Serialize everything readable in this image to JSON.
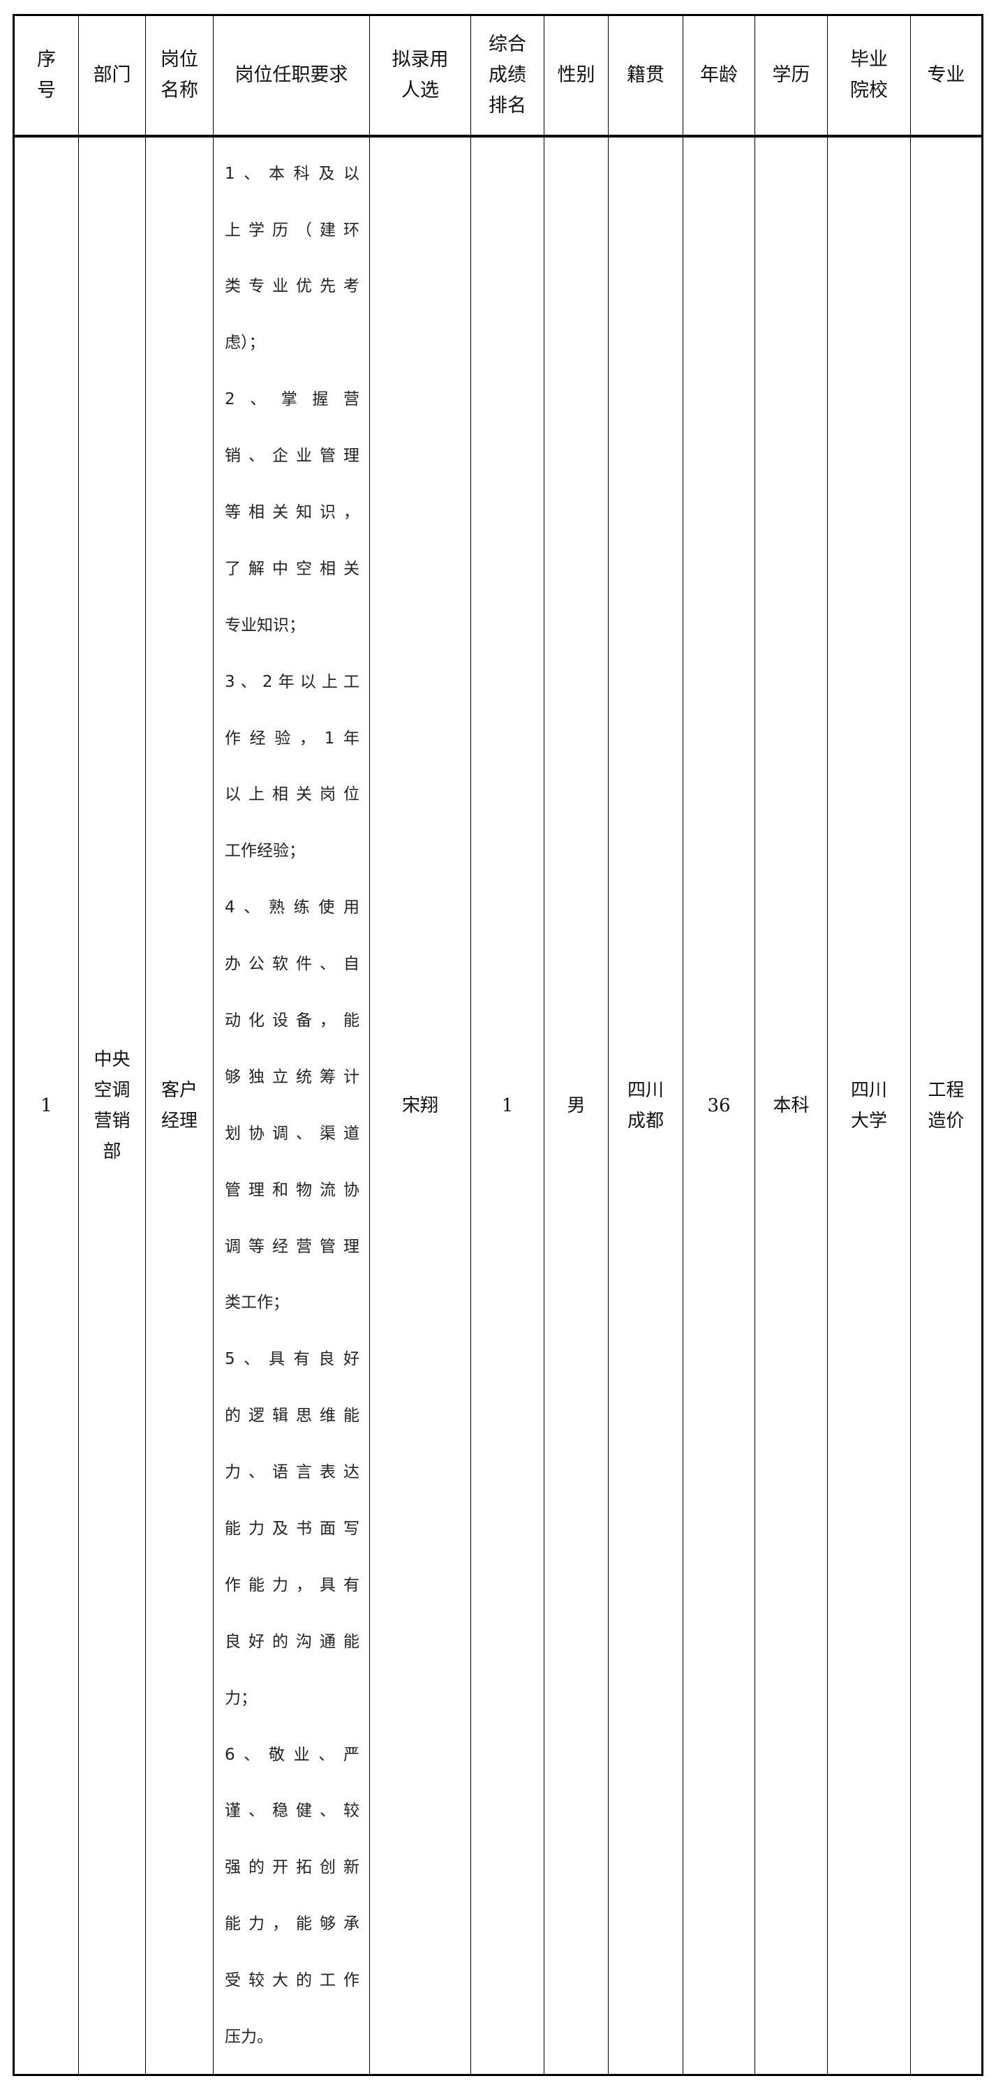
{
  "headers": [
    [
      "序",
      "号"
    ],
    [
      "部门"
    ],
    [
      "岗位",
      "名称"
    ],
    [
      "岗位任职要求"
    ],
    [
      "拟录用",
      "人选"
    ],
    [
      "综合",
      "成绩",
      "排名"
    ],
    [
      "性别"
    ],
    [
      "籍贯"
    ],
    [
      "年龄"
    ],
    [
      "学历"
    ],
    [
      "毕业",
      "院校"
    ],
    [
      "专业"
    ]
  ],
  "row": {
    "index": "1",
    "department": [
      "中央",
      "空调",
      "营销",
      "部"
    ],
    "position": [
      "客户",
      "经理"
    ],
    "requirements": [
      {
        "t": "1、本科及以",
        "end": false
      },
      {
        "t": "上学历（建环",
        "end": false
      },
      {
        "t": "类专业优先考",
        "end": false
      },
      {
        "t": "虑）；",
        "end": true
      },
      {
        "t": "2、掌握营",
        "end": false
      },
      {
        "t": "销、企业管理",
        "end": false
      },
      {
        "t": "等相关知识，",
        "end": false
      },
      {
        "t": "了解中空相关",
        "end": false
      },
      {
        "t": "专业知识；",
        "end": true
      },
      {
        "t": "3、2年以上工",
        "end": false
      },
      {
        "t": "作经验，1年",
        "end": false
      },
      {
        "t": "以上相关岗位",
        "end": false
      },
      {
        "t": "工作经验；",
        "end": true
      },
      {
        "t": "4、熟练使用",
        "end": false
      },
      {
        "t": "办公软件、自",
        "end": false
      },
      {
        "t": "动化设备，能",
        "end": false
      },
      {
        "t": "够独立统筹计",
        "end": false
      },
      {
        "t": "划协调、渠道",
        "end": false
      },
      {
        "t": "管理和物流协",
        "end": false
      },
      {
        "t": "调等经营管理",
        "end": false
      },
      {
        "t": "类工作；",
        "end": true
      },
      {
        "t": "5、具有良好",
        "end": false
      },
      {
        "t": "的逻辑思维能",
        "end": false
      },
      {
        "t": "力、语言表达",
        "end": false
      },
      {
        "t": "能力及书面写",
        "end": false
      },
      {
        "t": "作能力，具有",
        "end": false
      },
      {
        "t": "良好的沟通能",
        "end": false
      },
      {
        "t": "力；",
        "end": true
      },
      {
        "t": "6、敬业、严",
        "end": false
      },
      {
        "t": "谨、稳健、较",
        "end": false
      },
      {
        "t": "强的开拓创新",
        "end": false
      },
      {
        "t": "能力，能够承",
        "end": false
      },
      {
        "t": "受较大的工作",
        "end": false
      },
      {
        "t": "压力。",
        "end": true
      }
    ],
    "candidate": "宋翔",
    "rank": "1",
    "gender": "男",
    "origin": [
      "四川",
      "成都"
    ],
    "age": "36",
    "education": "本科",
    "school": [
      "四川",
      "大学"
    ],
    "major": [
      "工程",
      "造价"
    ]
  }
}
